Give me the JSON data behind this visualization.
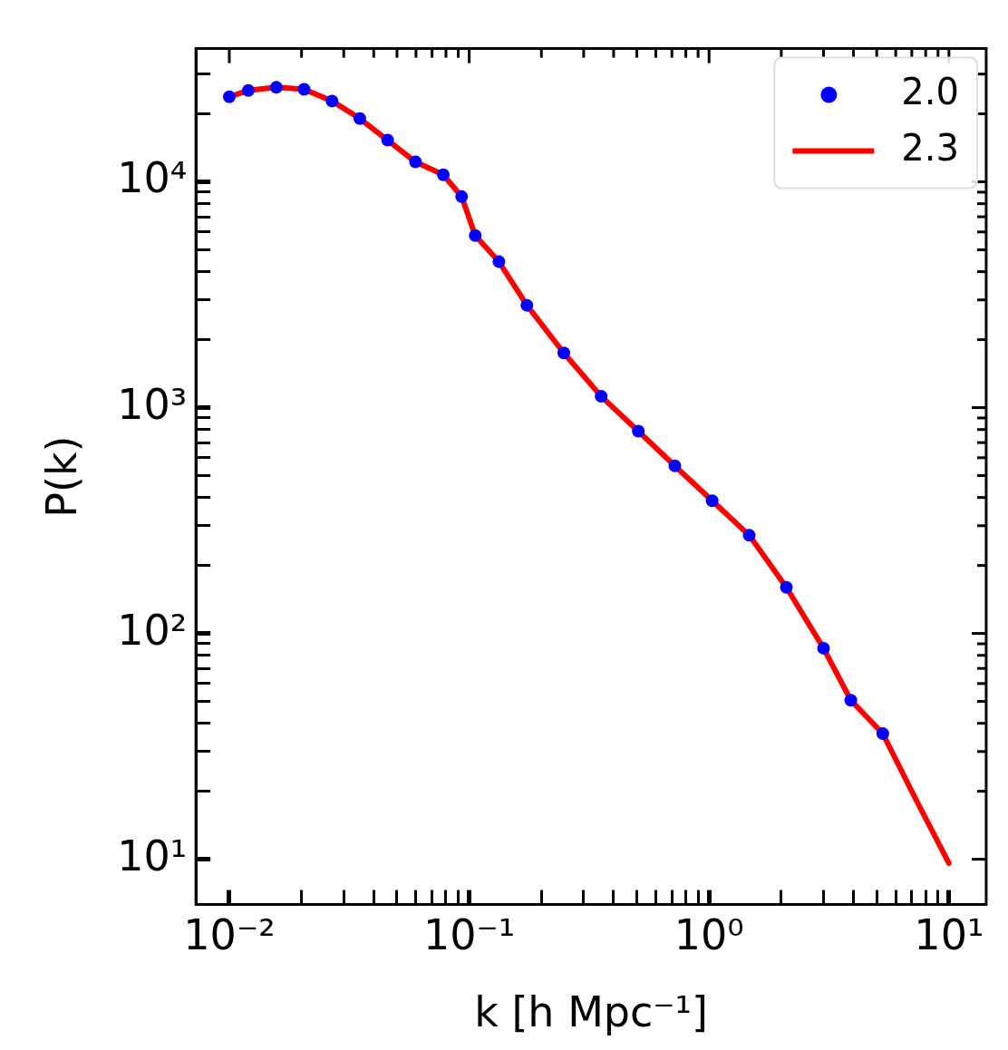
{
  "chart_data": {
    "type": "line",
    "xlabel": "k [h Mpc⁻¹]",
    "ylabel": "P(k)",
    "log": "xy",
    "grid": false,
    "legend": "top right",
    "line_style": "solid",
    "xlim": [
      0.00726,
      14.3
    ],
    "ylim": [
      6.3,
      38900
    ],
    "xticks": [
      {
        "value": 0.01,
        "label": "10⁻²"
      },
      {
        "value": 0.02,
        "label": null
      },
      {
        "value": 0.03,
        "label": null
      },
      {
        "value": 0.04,
        "label": null
      },
      {
        "value": 0.05,
        "label": null
      },
      {
        "value": 0.06,
        "label": null
      },
      {
        "value": 0.07,
        "label": null
      },
      {
        "value": 0.08,
        "label": null
      },
      {
        "value": 0.09,
        "label": null
      },
      {
        "value": 0.1,
        "label": "10⁻¹"
      },
      {
        "value": 0.2,
        "label": null
      },
      {
        "value": 0.3,
        "label": null
      },
      {
        "value": 0.4,
        "label": null
      },
      {
        "value": 0.5,
        "label": null
      },
      {
        "value": 0.6,
        "label": null
      },
      {
        "value": 0.7,
        "label": null
      },
      {
        "value": 0.8,
        "label": null
      },
      {
        "value": 0.9,
        "label": null
      },
      {
        "value": 1,
        "label": "10⁰"
      },
      {
        "value": 2,
        "label": null
      },
      {
        "value": 3,
        "label": null
      },
      {
        "value": 4,
        "label": null
      },
      {
        "value": 5,
        "label": null
      },
      {
        "value": 6,
        "label": null
      },
      {
        "value": 7,
        "label": null
      },
      {
        "value": 8,
        "label": null
      },
      {
        "value": 9,
        "label": null
      },
      {
        "value": 10,
        "label": "10¹"
      }
    ],
    "yticks": [
      {
        "value": 10,
        "label": "10¹"
      },
      {
        "value": 20,
        "label": null
      },
      {
        "value": 30,
        "label": null
      },
      {
        "value": 40,
        "label": null
      },
      {
        "value": 50,
        "label": null
      },
      {
        "value": 60,
        "label": null
      },
      {
        "value": 70,
        "label": null
      },
      {
        "value": 80,
        "label": null
      },
      {
        "value": 90,
        "label": null
      },
      {
        "value": 100,
        "label": "10²"
      },
      {
        "value": 200,
        "label": null
      },
      {
        "value": 300,
        "label": null
      },
      {
        "value": 400,
        "label": null
      },
      {
        "value": 500,
        "label": null
      },
      {
        "value": 600,
        "label": null
      },
      {
        "value": 700,
        "label": null
      },
      {
        "value": 800,
        "label": null
      },
      {
        "value": 900,
        "label": null
      },
      {
        "value": 1000,
        "label": "10³"
      },
      {
        "value": 2000,
        "label": null
      },
      {
        "value": 3000,
        "label": null
      },
      {
        "value": 4000,
        "label": null
      },
      {
        "value": 5000,
        "label": null
      },
      {
        "value": 6000,
        "label": null
      },
      {
        "value": 7000,
        "label": null
      },
      {
        "value": 8000,
        "label": null
      },
      {
        "value": 9000,
        "label": null
      },
      {
        "value": 10000,
        "label": "10⁴"
      },
      {
        "value": 20000,
        "label": null
      },
      {
        "value": 30000,
        "label": null
      }
    ],
    "series": [
      {
        "name": "2.0",
        "type": "scatter",
        "color": "#0000ff",
        "x": [
          0.01,
          0.012,
          0.0157,
          0.0205,
          0.0268,
          0.035,
          0.0457,
          0.0597,
          0.078,
          0.093,
          0.106,
          0.133,
          0.174,
          0.248,
          0.355,
          0.507,
          0.72,
          1.03,
          1.47,
          2.1,
          3.0,
          3.9,
          5.3
        ],
        "values": [
          23800,
          25400,
          26200,
          25700,
          22800,
          19060,
          15300,
          12250,
          10740,
          8600,
          5780,
          4430,
          2840,
          1747,
          1122,
          787,
          552,
          387,
          272,
          160,
          86,
          50.6,
          36
        ]
      },
      {
        "name": "2.3",
        "color": "#ff0000",
        "x": [
          0.01,
          0.012,
          0.0157,
          0.0205,
          0.0268,
          0.035,
          0.0457,
          0.0597,
          0.078,
          0.093,
          0.106,
          0.133,
          0.174,
          0.248,
          0.355,
          0.507,
          0.72,
          1.03,
          1.47,
          2.1,
          3.0,
          3.9,
          5.3,
          7.3,
          10
        ],
        "values": [
          23800,
          25400,
          26200,
          25700,
          22800,
          19060,
          15300,
          12250,
          10740,
          8600,
          5780,
          4430,
          2840,
          1747,
          1122,
          787,
          552,
          387,
          272,
          160,
          86,
          50.6,
          36,
          18.3,
          9.6
        ]
      }
    ]
  }
}
